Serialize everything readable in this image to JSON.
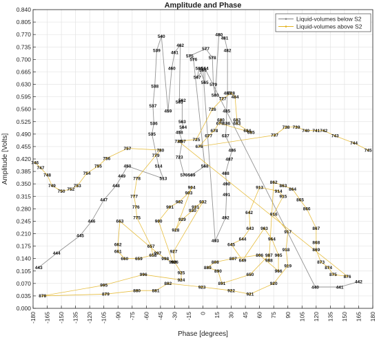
{
  "chart_data": {
    "type": "line",
    "title": "Amplitude and Phase",
    "xlabel": "Phase [degrees]",
    "ylabel": "Amplitude [Volts]",
    "xlim": [
      -180,
      180
    ],
    "ylim": [
      0,
      0.84
    ],
    "xticks": [
      "-180",
      "-165",
      "-150",
      "-135",
      "-120",
      "-105",
      "-90",
      "-75",
      "-60",
      "-45",
      "-30",
      "-15",
      "0",
      "15",
      "30",
      "45",
      "60",
      "75",
      "90",
      "105",
      "120",
      "135",
      "150",
      "165",
      "180"
    ],
    "yticks": [
      "0.000",
      "0.035",
      "0.070",
      "0.105",
      "0.140",
      "0.175",
      "0.210",
      "0.245",
      "0.280",
      "0.315",
      "0.350",
      "0.385",
      "0.420",
      "0.455",
      "0.490",
      "0.525",
      "0.560",
      "0.595",
      "0.630",
      "0.665",
      "0.700",
      "0.735",
      "0.770",
      "0.805",
      "0.840"
    ],
    "grid": true,
    "legend_position": "top-right",
    "series": [
      {
        "name": "Liquid-volumes below S2",
        "color": "#808080",
        "points": [
          {
            "x": -174,
            "y": 0.115,
            "label": "443"
          },
          {
            "x": -155,
            "y": 0.155,
            "label": "444"
          },
          {
            "x": -130,
            "y": 0.205,
            "label": "445"
          },
          {
            "x": -118,
            "y": 0.245,
            "label": "446"
          },
          {
            "x": -105,
            "y": 0.305,
            "label": "447"
          },
          {
            "x": -92,
            "y": 0.345,
            "label": "448"
          },
          {
            "x": -86,
            "y": 0.372,
            "label": "449"
          },
          {
            "x": -80,
            "y": 0.4,
            "label": "450"
          },
          {
            "x": -42,
            "y": 0.365,
            "label": "513"
          },
          {
            "x": -47,
            "y": 0.4,
            "label": "514"
          },
          {
            "x": -54,
            "y": 0.49,
            "label": "535"
          },
          {
            "x": -52,
            "y": 0.52,
            "label": "536"
          },
          {
            "x": -53,
            "y": 0.57,
            "label": "537"
          },
          {
            "x": -51,
            "y": 0.625,
            "label": "538"
          },
          {
            "x": -49,
            "y": 0.725,
            "label": "539"
          },
          {
            "x": -44,
            "y": 0.765,
            "label": "540"
          },
          {
            "x": -37,
            "y": 0.555,
            "label": "459"
          },
          {
            "x": -33,
            "y": 0.675,
            "label": "460"
          },
          {
            "x": -30,
            "y": 0.72,
            "label": "461"
          },
          {
            "x": -24,
            "y": 0.74,
            "label": "462"
          },
          {
            "x": -25,
            "y": 0.58,
            "label": "503"
          },
          {
            "x": -22,
            "y": 0.585,
            "label": "562"
          },
          {
            "x": -22,
            "y": 0.525,
            "label": "563"
          },
          {
            "x": -21,
            "y": 0.51,
            "label": "564"
          },
          {
            "x": -25,
            "y": 0.495,
            "label": "458"
          },
          {
            "x": -22,
            "y": 0.47,
            "label": "457"
          },
          {
            "x": -25,
            "y": 0.425,
            "label": "723"
          },
          {
            "x": -20,
            "y": 0.375,
            "label": "570"
          },
          {
            "x": -12,
            "y": 0.375,
            "label": "569"
          },
          {
            "x": 2,
            "y": 0.4,
            "label": "568"
          },
          {
            "x": -10,
            "y": 0.7,
            "label": "576"
          },
          {
            "x": -14,
            "y": 0.71,
            "label": "575"
          },
          {
            "x": 3,
            "y": 0.73,
            "label": "577"
          },
          {
            "x": 10,
            "y": 0.705,
            "label": "578"
          },
          {
            "x": 11,
            "y": 0.63,
            "label": "579"
          },
          {
            "x": 13,
            "y": 0.6,
            "label": "580"
          },
          {
            "x": 17,
            "y": 0.77,
            "label": "480"
          },
          {
            "x": 23,
            "y": 0.76,
            "label": "481"
          },
          {
            "x": 26,
            "y": 0.725,
            "label": "482"
          },
          {
            "x": 26,
            "y": 0.605,
            "label": "483"
          },
          {
            "x": 25,
            "y": 0.555,
            "label": "485"
          },
          {
            "x": 25,
            "y": 0.52,
            "label": "636"
          },
          {
            "x": 24,
            "y": 0.485,
            "label": "637"
          },
          {
            "x": 31,
            "y": 0.445,
            "label": "486"
          },
          {
            "x": 28,
            "y": 0.42,
            "label": "487"
          },
          {
            "x": 24,
            "y": 0.38,
            "label": "488"
          },
          {
            "x": 25,
            "y": 0.35,
            "label": "490"
          },
          {
            "x": 25,
            "y": 0.32,
            "label": "491"
          },
          {
            "x": 24,
            "y": 0.255,
            "label": "492"
          },
          {
            "x": 13,
            "y": 0.19,
            "label": "493"
          },
          {
            "x": 0,
            "y": 0.67,
            "label": "566"
          },
          {
            "x": -6,
            "y": 0.65,
            "label": "567"
          },
          {
            "x": -4,
            "y": 0.675,
            "label": "586"
          },
          {
            "x": 2,
            "y": 0.635,
            "label": "565"
          },
          {
            "x": 2,
            "y": 0.675,
            "label": "564"
          },
          {
            "x": 119,
            "y": 0.06,
            "label": "440"
          },
          {
            "x": 145,
            "y": 0.06,
            "label": "441"
          },
          {
            "x": 165,
            "y": 0.075,
            "label": "442"
          }
        ]
      },
      {
        "name": "Liquid-volumes above S2",
        "color": "#e3b31f",
        "points": [
          {
            "x": -178,
            "y": 0.41,
            "label": "746"
          },
          {
            "x": -172,
            "y": 0.395,
            "label": "747"
          },
          {
            "x": -165,
            "y": 0.375,
            "label": "748"
          },
          {
            "x": -160,
            "y": 0.345,
            "label": "749"
          },
          {
            "x": -150,
            "y": 0.33,
            "label": "750"
          },
          {
            "x": -140,
            "y": 0.335,
            "label": "752"
          },
          {
            "x": -133,
            "y": 0.345,
            "label": "753"
          },
          {
            "x": -123,
            "y": 0.38,
            "label": "754"
          },
          {
            "x": -111,
            "y": 0.4,
            "label": "755"
          },
          {
            "x": -102,
            "y": 0.422,
            "label": "756"
          },
          {
            "x": -80,
            "y": 0.45,
            "label": "757"
          },
          {
            "x": -45,
            "y": 0.445,
            "label": "780"
          },
          {
            "x": -50,
            "y": 0.43,
            "label": "779"
          },
          {
            "x": -70,
            "y": 0.365,
            "label": "778"
          },
          {
            "x": -73,
            "y": 0.315,
            "label": "777"
          },
          {
            "x": -71,
            "y": 0.285,
            "label": "776"
          },
          {
            "x": -70,
            "y": 0.255,
            "label": "775"
          },
          {
            "x": -55,
            "y": 0.175,
            "label": "657"
          },
          {
            "x": -53,
            "y": 0.15,
            "label": "658"
          },
          {
            "x": -68,
            "y": 0.14,
            "label": "659"
          },
          {
            "x": -83,
            "y": 0.14,
            "label": "660"
          },
          {
            "x": -90,
            "y": 0.16,
            "label": "661"
          },
          {
            "x": -90,
            "y": 0.18,
            "label": "662"
          },
          {
            "x": -88,
            "y": 0.245,
            "label": "663"
          },
          {
            "x": -48,
            "y": 0.155,
            "label": "997"
          },
          {
            "x": -40,
            "y": 0.14,
            "label": "998"
          },
          {
            "x": -32,
            "y": 0.13,
            "label": "999"
          },
          {
            "x": -47,
            "y": 0.245,
            "label": "900"
          },
          {
            "x": -35,
            "y": 0.285,
            "label": "901"
          },
          {
            "x": -25,
            "y": 0.3,
            "label": "902"
          },
          {
            "x": -15,
            "y": 0.325,
            "label": "903"
          },
          {
            "x": -12,
            "y": 0.34,
            "label": "904"
          },
          {
            "x": -29,
            "y": 0.22,
            "label": "928"
          },
          {
            "x": -22,
            "y": 0.25,
            "label": "929"
          },
          {
            "x": -11,
            "y": 0.275,
            "label": "930"
          },
          {
            "x": -8,
            "y": 0.285,
            "label": "931"
          },
          {
            "x": 0,
            "y": 0.3,
            "label": "932"
          },
          {
            "x": -31,
            "y": 0.16,
            "label": "927"
          },
          {
            "x": -30,
            "y": 0.13,
            "label": "926"
          },
          {
            "x": -23,
            "y": 0.1,
            "label": "925"
          },
          {
            "x": -23,
            "y": 0.08,
            "label": "924"
          },
          {
            "x": -63,
            "y": 0.095,
            "label": "996"
          },
          {
            "x": -105,
            "y": 0.065,
            "label": "995"
          },
          {
            "x": -170,
            "y": 0.035,
            "label": "878"
          },
          {
            "x": -103,
            "y": 0.04,
            "label": "879"
          },
          {
            "x": -70,
            "y": 0.05,
            "label": "880"
          },
          {
            "x": -50,
            "y": 0.05,
            "label": "881"
          },
          {
            "x": -37,
            "y": 0.07,
            "label": "882"
          },
          {
            "x": -1,
            "y": 0.06,
            "label": "923"
          },
          {
            "x": 30,
            "y": 0.05,
            "label": "922"
          },
          {
            "x": 50,
            "y": 0.04,
            "label": "921"
          },
          {
            "x": 75,
            "y": 0.07,
            "label": "920"
          },
          {
            "x": 90,
            "y": 0.12,
            "label": "919"
          },
          {
            "x": 88,
            "y": 0.165,
            "label": "918"
          },
          {
            "x": 90,
            "y": 0.215,
            "label": "917"
          },
          {
            "x": 75,
            "y": 0.265,
            "label": "916"
          },
          {
            "x": 85,
            "y": 0.315,
            "label": "915"
          },
          {
            "x": 80,
            "y": 0.33,
            "label": "914"
          },
          {
            "x": 60,
            "y": 0.34,
            "label": "913"
          },
          {
            "x": 49,
            "y": 0.27,
            "label": "642"
          },
          {
            "x": 50,
            "y": 0.225,
            "label": "643"
          },
          {
            "x": 42,
            "y": 0.195,
            "label": "644"
          },
          {
            "x": 30,
            "y": 0.18,
            "label": "645"
          },
          {
            "x": 42,
            "y": 0.135,
            "label": "649"
          },
          {
            "x": 65,
            "y": 0.225,
            "label": "963"
          },
          {
            "x": 73,
            "y": 0.195,
            "label": "964"
          },
          {
            "x": 80,
            "y": 0.15,
            "label": "965"
          },
          {
            "x": 80,
            "y": 0.105,
            "label": "966"
          },
          {
            "x": 60,
            "y": 0.15,
            "label": "806"
          },
          {
            "x": 32,
            "y": 0.14,
            "label": "807"
          },
          {
            "x": 13,
            "y": 0.13,
            "label": "808"
          },
          {
            "x": 5,
            "y": 0.115,
            "label": "889"
          },
          {
            "x": 16,
            "y": 0.105,
            "label": "890"
          },
          {
            "x": 20,
            "y": 0.07,
            "label": "891"
          },
          {
            "x": 50,
            "y": 0.095,
            "label": "650"
          },
          {
            "x": 70,
            "y": 0.15,
            "label": "987"
          },
          {
            "x": 70,
            "y": 0.135,
            "label": "988"
          },
          {
            "x": 75,
            "y": 0.355,
            "label": "862"
          },
          {
            "x": 85,
            "y": 0.345,
            "label": "863"
          },
          {
            "x": 95,
            "y": 0.335,
            "label": "864"
          },
          {
            "x": 103,
            "y": 0.305,
            "label": "865"
          },
          {
            "x": 110,
            "y": 0.28,
            "label": "866"
          },
          {
            "x": 120,
            "y": 0.225,
            "label": "867"
          },
          {
            "x": 120,
            "y": 0.185,
            "label": "868"
          },
          {
            "x": 120,
            "y": 0.165,
            "label": "869"
          },
          {
            "x": 125,
            "y": 0.13,
            "label": "873"
          },
          {
            "x": 133,
            "y": 0.115,
            "label": "874"
          },
          {
            "x": 138,
            "y": 0.095,
            "label": "875"
          },
          {
            "x": 153,
            "y": 0.09,
            "label": "876"
          },
          {
            "x": -26,
            "y": 0.47,
            "label": "724"
          },
          {
            "x": -7,
            "y": 0.475,
            "label": "725"
          },
          {
            "x": 10,
            "y": 0.56,
            "label": "726"
          },
          {
            "x": 21,
            "y": 0.59,
            "label": "727"
          },
          {
            "x": 30,
            "y": 0.605,
            "label": "728"
          },
          {
            "x": 34,
            "y": 0.595,
            "label": "484"
          },
          {
            "x": 36,
            "y": 0.53,
            "label": "682"
          },
          {
            "x": 36,
            "y": 0.52,
            "label": "683"
          },
          {
            "x": 47,
            "y": 0.5,
            "label": "684"
          },
          {
            "x": 51,
            "y": 0.495,
            "label": "685"
          },
          {
            "x": 18,
            "y": 0.52,
            "label": "679"
          },
          {
            "x": 19,
            "y": 0.53,
            "label": "680"
          },
          {
            "x": 12,
            "y": 0.5,
            "label": "678"
          },
          {
            "x": 6,
            "y": 0.485,
            "label": "677"
          },
          {
            "x": -4,
            "y": 0.455,
            "label": "676"
          },
          {
            "x": 76,
            "y": 0.487,
            "label": "737"
          },
          {
            "x": 88,
            "y": 0.51,
            "label": "738"
          },
          {
            "x": 99,
            "y": 0.51,
            "label": "739"
          },
          {
            "x": 109,
            "y": 0.5,
            "label": "740"
          },
          {
            "x": 120,
            "y": 0.5,
            "label": "741"
          },
          {
            "x": 128,
            "y": 0.5,
            "label": "742"
          },
          {
            "x": 140,
            "y": 0.485,
            "label": "743"
          },
          {
            "x": 160,
            "y": 0.465,
            "label": "744"
          },
          {
            "x": 175,
            "y": 0.445,
            "label": "745"
          }
        ]
      }
    ]
  }
}
